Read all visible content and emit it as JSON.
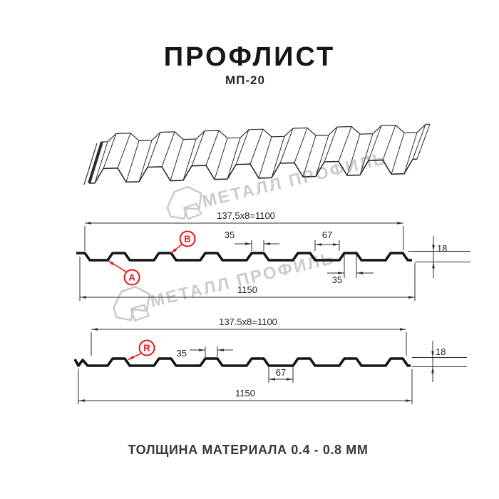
{
  "title": "ПРОФЛИСТ",
  "subtitle": "МП-20",
  "footer": "ТОЛЩИНА МАТЕРИАЛА 0.4 - 0.8 ММ",
  "watermark": {
    "text": "МЕТАЛЛ ПРОФИЛЬ",
    "color": "#c9c9c9"
  },
  "colors": {
    "profile_line": "#141414",
    "drawing_line": "#2d2d2d",
    "dim_line": "#2c2c2c",
    "accent_red": "#f01414",
    "background": "#ffffff"
  },
  "profile1": {
    "dim_top": "137,5x8=1100",
    "dim_rib": "35",
    "dim_valley": "67",
    "dim_rib_bottom": "35",
    "dim_height": "18",
    "dim_total": "1150",
    "label_a": "A",
    "label_b": "B"
  },
  "profile2": {
    "dim_top": "137.5x8=1100",
    "dim_rib": "35",
    "dim_valley": "67",
    "dim_height": "18",
    "dim_total": "1150",
    "label_r": "R"
  }
}
